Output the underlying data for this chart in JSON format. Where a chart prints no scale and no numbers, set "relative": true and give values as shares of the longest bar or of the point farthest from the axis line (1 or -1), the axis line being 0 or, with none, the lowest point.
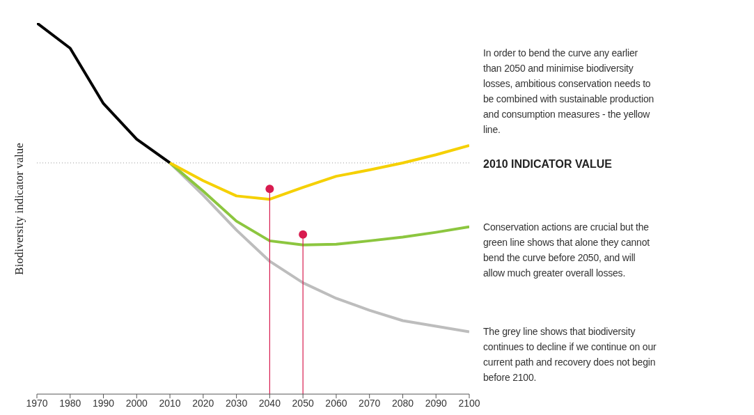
{
  "chart_data": {
    "type": "line",
    "ylabel": "Biodiversity indicator value",
    "relative": true,
    "xlim": [
      1970,
      2100
    ],
    "xticks": [
      1970,
      1980,
      1990,
      2000,
      2010,
      2020,
      2030,
      2040,
      2050,
      2060,
      2070,
      2080,
      2090,
      2100
    ],
    "grid": false,
    "marker": "none",
    "line_style": "solid",
    "series": [
      {
        "color": "#000000",
        "x": [
          1970,
          1980,
          1990,
          2000,
          2010
        ],
        "values": [
          1,
          0.932,
          0.783,
          0.687,
          0.623
        ]
      },
      {
        "color": "#bdbdbd",
        "x": [
          2010,
          2020,
          2030,
          2040,
          2050,
          2060,
          2070,
          2080,
          2090,
          2100
        ],
        "values": [
          0.623,
          0.536,
          0.442,
          0.358,
          0.3,
          0.258,
          0.226,
          0.198,
          0.183,
          0.168
        ]
      },
      {
        "color": "#8cc63f",
        "x": [
          2010,
          2020,
          2030,
          2040,
          2050,
          2060,
          2070,
          2080,
          2090,
          2100
        ],
        "values": [
          0.623,
          0.547,
          0.466,
          0.413,
          0.402,
          0.404,
          0.413,
          0.423,
          0.436,
          0.451
        ]
      },
      {
        "color": "#f5d000",
        "x": [
          2010,
          2020,
          2030,
          2040,
          2050,
          2060,
          2070,
          2080,
          2090,
          2100
        ],
        "values": [
          0.623,
          0.575,
          0.534,
          0.525,
          0.557,
          0.587,
          0.604,
          0.623,
          0.645,
          0.67
        ]
      },
      {
        "type": "lollipop",
        "marker": "circle",
        "color": "#d81b4f",
        "x": [
          2040,
          2050
        ],
        "values": [
          0.553,
          0.43
        ]
      }
    ],
    "ref_lines": [
      {
        "axis": "y",
        "value": 0.623,
        "label": "2010 INDICATOR VALUE",
        "color": "#999999",
        "line_style": "dotted"
      }
    ],
    "annotations": [
      "In order to bend the curve any earlier than 2050 and minimise biodiversity losses, ambitious conservation needs to be combined with sustainable production and consumption measures - the yellow line.",
      "Conservation actions are crucial but the green line shows that alone they cannot bend the curve before 2050, and will allow much greater overall losses.",
      "The grey line shows that biodiversity continues to decline if we continue on our current path and recovery does not begin before 2100."
    ]
  }
}
